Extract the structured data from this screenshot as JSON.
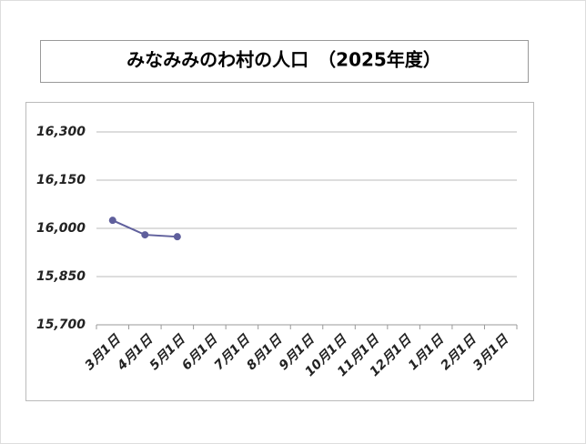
{
  "chart_data": {
    "type": "line",
    "title": "みなみみのわ村の人口　（2025年度）",
    "categories": [
      "3月1日",
      "4月1日",
      "5月1日",
      "6月1日",
      "7月1日",
      "8月1日",
      "9月1日",
      "10月1日",
      "11月1日",
      "12月1日",
      "1月1日",
      "2月1日",
      "3月1日"
    ],
    "series": [
      {
        "color": "#5f5f9c",
        "values": [
          16025,
          15980,
          15974,
          null,
          null,
          null,
          null,
          null,
          null,
          null,
          null,
          null,
          null
        ]
      }
    ],
    "ylim": [
      15700,
      16300
    ],
    "yticks": [
      {
        "value": 15700,
        "label": "15,700"
      },
      {
        "value": 15850,
        "label": "15,850"
      },
      {
        "value": 16000,
        "label": "16,000"
      },
      {
        "value": 16150,
        "label": "16,150"
      },
      {
        "value": 16300,
        "label": "16,300"
      }
    ],
    "grid": true
  }
}
